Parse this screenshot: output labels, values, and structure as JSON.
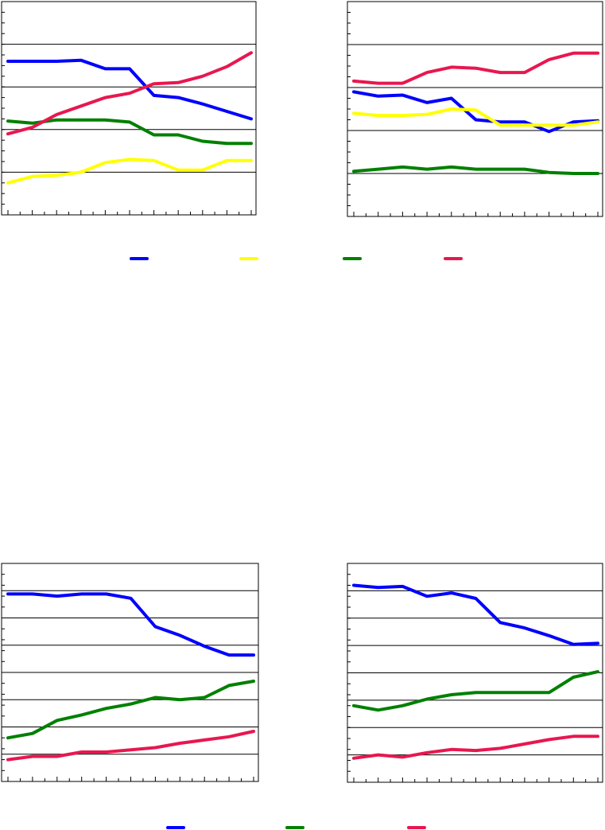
{
  "colors": {
    "blue": "#0000ff",
    "yellow": "#ffff00",
    "green": "#008000",
    "red": "#e8174f"
  },
  "chart_data": [
    {
      "type": "line",
      "ylim": [
        0,
        100
      ],
      "grid": true,
      "x": [
        0,
        1,
        2,
        3,
        4,
        5,
        6,
        7,
        8,
        9,
        10
      ],
      "series": [
        {
          "color_key": "blue",
          "values": [
            72,
            72,
            72,
            72.5,
            68.5,
            68.5,
            56,
            55,
            52,
            48.5,
            45
          ]
        },
        {
          "color_key": "yellow",
          "values": [
            15,
            18,
            18.5,
            20,
            24.5,
            26,
            25.5,
            21,
            21,
            25.5,
            25.5
          ]
        },
        {
          "color_key": "green",
          "values": [
            44,
            43,
            44.5,
            44.5,
            44.5,
            43.5,
            37.5,
            37.5,
            34.5,
            33.5,
            33.5
          ]
        },
        {
          "color_key": "red",
          "values": [
            38,
            41,
            47,
            51,
            55,
            57,
            61.5,
            62,
            65,
            69.5,
            76
          ]
        }
      ]
    },
    {
      "type": "line",
      "ylim": [
        0,
        100
      ],
      "grid": true,
      "x": [
        0,
        1,
        2,
        3,
        4,
        5,
        6,
        7,
        8,
        9,
        10
      ],
      "series": [
        {
          "color_key": "blue",
          "values": [
            58,
            56,
            56.5,
            53,
            55,
            45,
            44,
            44,
            39.5,
            44,
            44.5
          ]
        },
        {
          "color_key": "yellow",
          "values": [
            48,
            47,
            47,
            47.5,
            50,
            49.5,
            42.5,
            42.5,
            42.5,
            42.5,
            44
          ]
        },
        {
          "color_key": "green",
          "values": [
            21,
            22,
            23,
            22,
            23,
            22,
            22,
            22,
            20.5,
            20,
            20
          ]
        },
        {
          "color_key": "red",
          "values": [
            63,
            62,
            62,
            67,
            69.5,
            69,
            67,
            67,
            73,
            76,
            76
          ]
        }
      ]
    },
    {
      "type": "line",
      "ylim": [
        0,
        100
      ],
      "grid": true,
      "x": [
        0,
        1,
        2,
        3,
        4,
        5,
        6,
        7,
        8,
        9,
        10
      ],
      "series": [
        {
          "color_key": "blue",
          "values": [
            86,
            86,
            85,
            86,
            86,
            84,
            71,
            67,
            62,
            58,
            58
          ]
        },
        {
          "color_key": "green",
          "values": [
            20,
            22,
            28,
            30.5,
            33.5,
            35.5,
            38.5,
            37.5,
            38.5,
            44,
            46
          ]
        },
        {
          "color_key": "red",
          "values": [
            10,
            11.5,
            11.5,
            13.5,
            13.5,
            14.5,
            15.5,
            17.5,
            19,
            20.5,
            23
          ]
        }
      ]
    },
    {
      "type": "line",
      "ylim": [
        0,
        100
      ],
      "grid": true,
      "x": [
        0,
        1,
        2,
        3,
        4,
        5,
        6,
        7,
        8,
        9,
        10
      ],
      "series": [
        {
          "color_key": "blue",
          "values": [
            90,
            89,
            89.5,
            85,
            86.5,
            84,
            73,
            70.5,
            67,
            63,
            63.5
          ]
        },
        {
          "color_key": "green",
          "values": [
            35,
            33,
            35,
            38,
            40,
            41,
            41,
            41,
            41,
            48,
            50.5
          ]
        },
        {
          "color_key": "red",
          "values": [
            11,
            12.5,
            11.5,
            13.5,
            15,
            14.5,
            15.5,
            17.5,
            19.5,
            21,
            21
          ]
        }
      ]
    }
  ],
  "legends": [
    {
      "color_keys": [
        "blue",
        "yellow",
        "green",
        "red"
      ]
    },
    {
      "color_keys": [
        "blue",
        "green",
        "red"
      ]
    }
  ]
}
